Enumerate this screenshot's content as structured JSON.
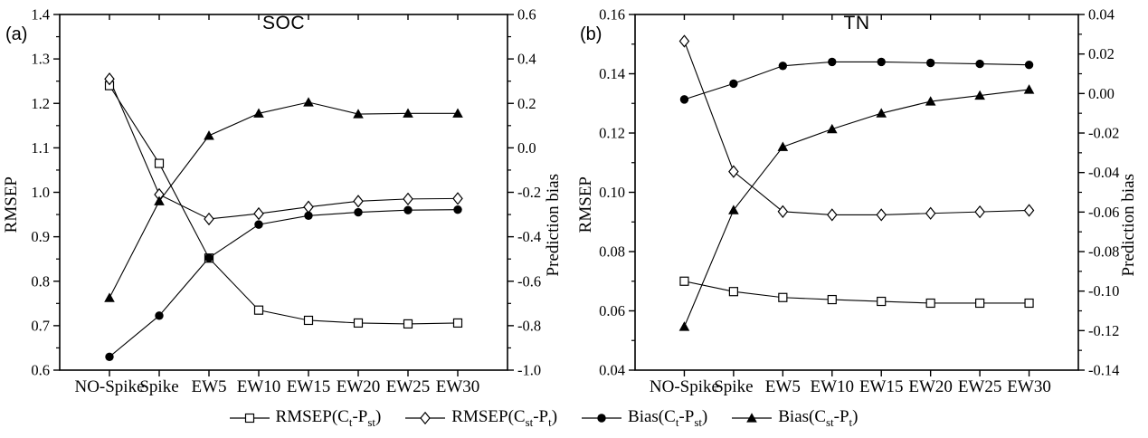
{
  "figure": {
    "background": "#ffffff",
    "ink_color": "#000000"
  },
  "legend": {
    "position": "bottom",
    "items": [
      {
        "id": "rmsep-ct-pst",
        "marker": "square-open",
        "parts": [
          {
            "t": "RMSEP(C"
          },
          {
            "sub": "t"
          },
          {
            "t": "-P"
          },
          {
            "sub": "st"
          },
          {
            "t": ")"
          }
        ]
      },
      {
        "id": "rmsep-cst-pt",
        "marker": "diamond-open",
        "parts": [
          {
            "t": "RMSEP(C"
          },
          {
            "sub": "st"
          },
          {
            "t": "-P"
          },
          {
            "sub": "t"
          },
          {
            "t": ")"
          }
        ]
      },
      {
        "id": "bias-ct-pst",
        "marker": "circle-filled",
        "parts": [
          {
            "t": "Bias(C"
          },
          {
            "sub": "t"
          },
          {
            "t": "-P"
          },
          {
            "sub": "st"
          },
          {
            "t": ")"
          }
        ]
      },
      {
        "id": "bias-cst-pt",
        "marker": "triangle-filled",
        "parts": [
          {
            "t": "Bias(C"
          },
          {
            "sub": "st"
          },
          {
            "t": "-P"
          },
          {
            "sub": "t"
          },
          {
            "t": ")"
          }
        ]
      }
    ]
  },
  "chart_data": [
    {
      "type": "line",
      "panel_label": "(a)",
      "title": "SOC",
      "categories": [
        "NO-Spike",
        "Spike",
        "EW5",
        "EW10",
        "EW15",
        "EW20",
        "EW25",
        "EW30"
      ],
      "left_axis": {
        "label": "RMSEP",
        "min": 0.6,
        "max": 1.4,
        "tick_values": [
          0.6,
          0.7,
          0.8,
          0.9,
          1.0,
          1.1,
          1.2,
          1.3,
          1.4
        ],
        "tick_labels": [
          "0.6",
          "0.7",
          "0.8",
          "0.9",
          "1.0",
          "1.1",
          "1.2",
          "1.3",
          "1.4"
        ]
      },
      "right_axis": {
        "label": "Prediction bias",
        "min": -1.0,
        "max": 0.6,
        "tick_values": [
          -1.0,
          -0.8,
          -0.6,
          -0.4,
          -0.2,
          0.0,
          0.2,
          0.4,
          0.6
        ],
        "tick_labels": [
          "-1.0",
          "-0.8",
          "-0.6",
          "-0.4",
          "-0.2",
          "0.0",
          "0.2",
          "0.4",
          "0.6"
        ]
      },
      "series": [
        {
          "id": "rmsep-ct-pst",
          "name": "RMSEP(Ct-Pst)",
          "axis": "left",
          "marker": "square-open",
          "values": [
            1.24,
            1.065,
            0.852,
            0.735,
            0.712,
            0.706,
            0.704,
            0.706
          ]
        },
        {
          "id": "rmsep-cst-pt",
          "name": "RMSEP(Cst-Pt)",
          "axis": "left",
          "marker": "diamond-open",
          "values": [
            1.255,
            0.995,
            0.94,
            0.952,
            0.967,
            0.98,
            0.985,
            0.986
          ]
        },
        {
          "id": "bias-ct-pst",
          "name": "Bias(Ct-Pst)",
          "axis": "right",
          "marker": "circle-filled",
          "values": [
            -0.94,
            -0.755,
            -0.495,
            -0.345,
            -0.305,
            -0.29,
            -0.28,
            -0.278
          ]
        },
        {
          "id": "bias-cst-pt",
          "name": "Bias(Cst-Pt)",
          "axis": "right",
          "marker": "triangle-filled",
          "values": [
            -0.675,
            -0.24,
            0.055,
            0.155,
            0.205,
            0.152,
            0.155,
            0.155
          ]
        }
      ]
    },
    {
      "type": "line",
      "panel_label": "(b)",
      "title": "TN",
      "categories": [
        "NO-Spike",
        "Spike",
        "EW5",
        "EW10",
        "EW15",
        "EW20",
        "EW25",
        "EW30"
      ],
      "left_axis": {
        "label": "RMSEP",
        "min": 0.04,
        "max": 0.16,
        "tick_values": [
          0.04,
          0.06,
          0.08,
          0.1,
          0.12,
          0.14,
          0.16
        ],
        "tick_labels": [
          "0.04",
          "0.06",
          "0.08",
          "0.10",
          "0.12",
          "0.14",
          "0.16"
        ]
      },
      "right_axis": {
        "label": "Prediction bias",
        "min": -0.14,
        "max": 0.04,
        "tick_values": [
          -0.14,
          -0.12,
          -0.1,
          -0.08,
          -0.06,
          -0.04,
          -0.02,
          0.0,
          0.02,
          0.04
        ],
        "tick_labels": [
          "-0.14",
          "-0.12",
          "-0.10",
          "-0.08",
          "-0.06",
          "-0.04",
          "-0.02",
          "0.00",
          "0.02",
          "0.04"
        ]
      },
      "series": [
        {
          "id": "rmsep-ct-pst",
          "name": "RMSEP(Ct-Pst)",
          "axis": "left",
          "marker": "square-open",
          "values": [
            0.07,
            0.0665,
            0.0645,
            0.0638,
            0.0632,
            0.0626,
            0.0626,
            0.0626
          ]
        },
        {
          "id": "rmsep-cst-pt",
          "name": "RMSEP(Cst-Pt)",
          "axis": "left",
          "marker": "diamond-open",
          "values": [
            0.151,
            0.107,
            0.0935,
            0.0924,
            0.0924,
            0.0929,
            0.0934,
            0.0939
          ]
        },
        {
          "id": "bias-ct-pst",
          "name": "Bias(Ct-Pst)",
          "axis": "right",
          "marker": "circle-filled",
          "values": [
            -0.003,
            0.005,
            0.014,
            0.016,
            0.016,
            0.0155,
            0.015,
            0.0145
          ]
        },
        {
          "id": "bias-cst-pt",
          "name": "Bias(Cst-Pt)",
          "axis": "right",
          "marker": "triangle-filled",
          "values": [
            -0.118,
            -0.059,
            -0.027,
            -0.018,
            -0.01,
            -0.004,
            -0.001,
            0.002
          ]
        }
      ]
    }
  ]
}
